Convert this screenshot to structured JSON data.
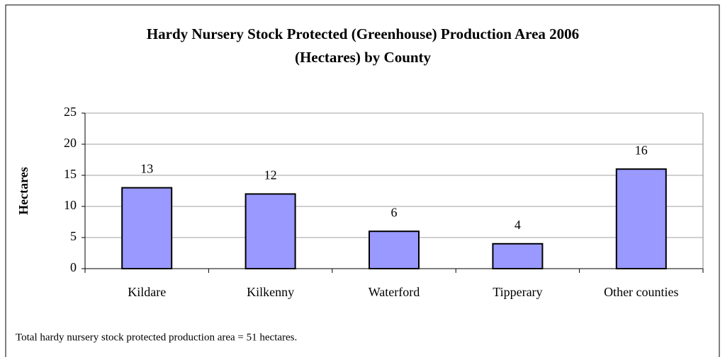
{
  "chart_data": {
    "type": "bar",
    "title": "Hardy Nursery Stock Protected (Greenhouse) Production Area 2006\n(Hectares) by County",
    "y_label": "Hectares",
    "categories": [
      "Kildare",
      "Kilkenny",
      "Waterford",
      "Tipperary",
      "Other counties"
    ],
    "values": [
      13,
      12,
      6,
      4,
      16
    ],
    "color": "#9999ff",
    "ylim": [
      0,
      25
    ],
    "yticks": [
      0,
      5,
      10,
      15,
      20,
      25
    ],
    "grid": true,
    "note": "Total hardy nursery stock protected production area = 51 hectares."
  }
}
